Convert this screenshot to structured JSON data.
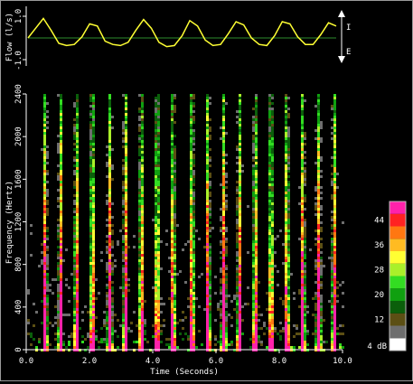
{
  "chart_data": [
    {
      "type": "line",
      "ylabel": "Flow (l/s)",
      "ylim": [
        -1.0,
        1.0
      ],
      "y_ticks": [
        "1.0",
        "-1.0"
      ],
      "xlim": [
        0,
        10
      ],
      "series": [
        {
          "color": "#ffff33",
          "x": [
            0.0,
            0.25,
            0.5,
            0.75,
            1.0,
            1.25,
            1.5,
            1.75,
            2.0,
            2.25,
            2.5,
            2.75,
            3.0,
            3.25,
            3.5,
            3.75,
            4.0,
            4.25,
            4.5,
            4.75,
            5.0,
            5.25,
            5.5,
            5.75,
            6.0,
            6.25,
            6.5,
            6.75,
            7.0,
            7.25,
            7.5,
            7.75,
            8.0,
            8.25,
            8.5,
            8.75,
            9.0,
            9.25,
            9.5,
            9.75,
            10.0
          ],
          "y": [
            0.0,
            0.45,
            0.9,
            0.35,
            -0.25,
            -0.35,
            -0.3,
            0.05,
            0.65,
            0.55,
            -0.15,
            -0.3,
            -0.35,
            -0.2,
            0.35,
            0.85,
            0.45,
            -0.2,
            -0.4,
            -0.35,
            0.1,
            0.8,
            0.55,
            -0.1,
            -0.35,
            -0.3,
            0.2,
            0.75,
            0.6,
            0.0,
            -0.3,
            -0.35,
            0.1,
            0.75,
            0.65,
            0.05,
            -0.3,
            -0.3,
            0.15,
            0.7,
            0.55
          ]
        }
      ],
      "baseline_color": "#2e8b2e",
      "side_labels": {
        "arrow_top": "I",
        "arrow_bottom": "E"
      }
    },
    {
      "type": "heatmap",
      "xlabel": "Time (Seconds)",
      "ylabel": "Frequency (Hertz)",
      "xlim": [
        0,
        10
      ],
      "ylim": [
        0,
        2400
      ],
      "x_ticks": [
        "0.0",
        "2.0",
        "4.0",
        "6.0",
        "8.0",
        "10.0"
      ],
      "y_ticks": [
        "0",
        "400",
        "800",
        "1200",
        "1600",
        "2000",
        "2400"
      ],
      "burst_times_s": [
        0.55,
        1.05,
        1.55,
        2.05,
        2.6,
        3.1,
        3.6,
        4.1,
        4.6,
        5.2,
        5.7,
        6.2,
        6.7,
        7.2,
        7.7,
        8.2,
        8.7,
        9.2,
        9.7
      ],
      "colorbar": {
        "unit_label": "4 dB",
        "ticks": [
          "12",
          "20",
          "28",
          "36",
          "44"
        ],
        "levels": [
          {
            "db": 4,
            "color": "#ffffff"
          },
          {
            "db": 8,
            "color": "#6e6e6e"
          },
          {
            "db": 12,
            "color": "#5c4f14"
          },
          {
            "db": 16,
            "color": "#0b5f0b"
          },
          {
            "db": 20,
            "color": "#10a010"
          },
          {
            "db": 24,
            "color": "#33dd22"
          },
          {
            "db": 28,
            "color": "#aaf02a"
          },
          {
            "db": 32,
            "color": "#ffff33"
          },
          {
            "db": 36,
            "color": "#ffbb22"
          },
          {
            "db": 40,
            "color": "#ff7711"
          },
          {
            "db": 44,
            "color": "#ff2222"
          },
          {
            "db": 48,
            "color": "#ff22aa"
          }
        ]
      }
    }
  ]
}
